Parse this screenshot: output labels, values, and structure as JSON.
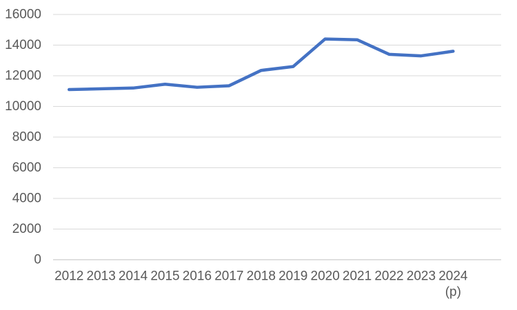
{
  "chart_data": {
    "type": "line",
    "title": "",
    "xlabel": "",
    "ylabel": "",
    "categories": [
      "2012",
      "2013",
      "2014",
      "2015",
      "2016",
      "2017",
      "2018",
      "2019",
      "2020",
      "2021",
      "2022",
      "2023",
      "2024"
    ],
    "series": [
      {
        "name": "",
        "values": [
          11100,
          11150,
          11200,
          11450,
          11250,
          11350,
          12350,
          12600,
          14400,
          14350,
          13400,
          13300,
          13600
        ]
      }
    ],
    "last_category_note": "(p)",
    "ylim": [
      0,
      16000
    ],
    "y_ticks": [
      "0",
      "2000",
      "4000",
      "6000",
      "8000",
      "10000",
      "12000",
      "14000",
      "16000"
    ],
    "grid": true,
    "legend_position": "none",
    "colors": {
      "line": "#4472C4",
      "gridline": "#D9D9D9",
      "axis_line": "#BFBFBF",
      "label": "#595959"
    }
  }
}
